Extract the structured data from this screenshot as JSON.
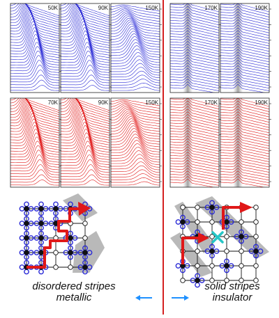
{
  "colors": {
    "divider": "#d42020",
    "blue": "#2a2ad6",
    "red": "#e01818",
    "frame": "#222222",
    "stripe_gray": "#b9b9b9",
    "arrow_blue": "#1e90ff",
    "cyan": "#26c6c6"
  },
  "panels": {
    "top_left": [
      "50K",
      "90K",
      "150K"
    ],
    "top_right": [
      "170K",
      "190K"
    ],
    "bottom_left": [
      "70K",
      "90K",
      "150K"
    ],
    "bottom_right": [
      "170K",
      "190K"
    ]
  },
  "captions": {
    "left": {
      "line1": "disordered stripes",
      "line2": "metallic"
    },
    "right": {
      "line1": "solid stripes",
      "line2": "insulator"
    }
  }
}
